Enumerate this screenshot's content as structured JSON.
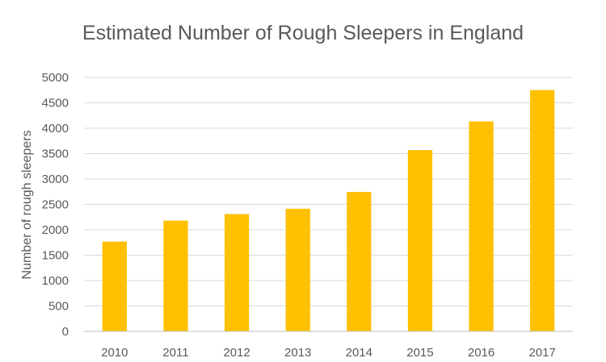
{
  "chart_data": {
    "type": "bar",
    "title": "Estimated Number of Rough Sleepers in England",
    "xlabel": "",
    "ylabel": "Number of rough sleepers",
    "categories": [
      "2010",
      "2011",
      "2012",
      "2013",
      "2014",
      "2015",
      "2016",
      "2017"
    ],
    "values": [
      1768,
      2181,
      2309,
      2414,
      2744,
      3569,
      4134,
      4751
    ],
    "ylim": [
      0,
      5000
    ],
    "yticks": [
      0,
      500,
      1000,
      1500,
      2000,
      2500,
      3000,
      3500,
      4000,
      4500,
      5000
    ],
    "grid": true,
    "legend": "none",
    "bar_color": "#FFC000"
  }
}
